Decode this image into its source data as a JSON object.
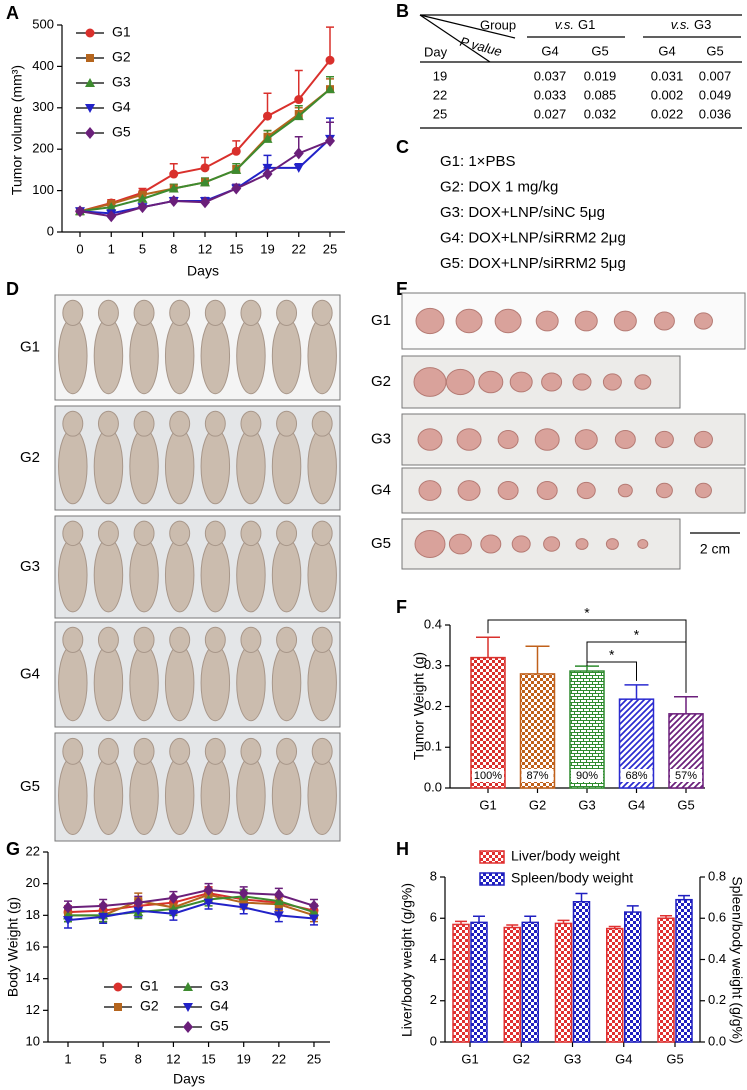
{
  "chart_data": [
    {
      "panel_label": "A",
      "type": "line",
      "xlabel": "Days",
      "ylabel": "Tumor volume (mm³)",
      "categories": [
        "0",
        "1",
        "5",
        "8",
        "12",
        "15",
        "19",
        "22",
        "25"
      ],
      "ylim": [
        0,
        500
      ],
      "yticks": [
        0,
        100,
        200,
        300,
        400,
        500
      ],
      "error_bars": "upper",
      "legend": "upper left",
      "series": [
        {
          "name": "G1",
          "color": "#d9302c",
          "marker": "circle",
          "values": [
            50,
            70,
            95,
            140,
            155,
            195,
            280,
            320,
            415
          ],
          "errors": [
            5,
            8,
            10,
            25,
            25,
            25,
            55,
            70,
            80
          ]
        },
        {
          "name": "G2",
          "color": "#b5651d",
          "marker": "square",
          "values": [
            50,
            68,
            90,
            105,
            120,
            150,
            230,
            285,
            345
          ],
          "errors": [
            4,
            5,
            8,
            10,
            10,
            10,
            15,
            15,
            25
          ]
        },
        {
          "name": "G3",
          "color": "#3d8b2f",
          "marker": "triangle-up",
          "values": [
            50,
            60,
            80,
            105,
            120,
            150,
            225,
            280,
            345
          ],
          "errors": [
            5,
            5,
            8,
            10,
            10,
            15,
            20,
            25,
            30
          ]
        },
        {
          "name": "G4",
          "color": "#2222c8",
          "marker": "triangle-down",
          "values": [
            50,
            45,
            60,
            75,
            75,
            105,
            155,
            155,
            225
          ],
          "errors": [
            5,
            5,
            5,
            8,
            8,
            10,
            30,
            10,
            50
          ]
        },
        {
          "name": "G5",
          "color": "#6a1f7a",
          "marker": "diamond",
          "values": [
            50,
            38,
            60,
            75,
            72,
            105,
            140,
            190,
            220
          ],
          "errors": [
            5,
            5,
            5,
            5,
            8,
            10,
            15,
            40,
            45
          ]
        }
      ]
    },
    {
      "panel_label": "F",
      "type": "bar",
      "ylabel": "Tumor Weight (g)",
      "categories": [
        "G1",
        "G2",
        "G3",
        "G4",
        "G5"
      ],
      "values": [
        0.32,
        0.28,
        0.287,
        0.218,
        0.182
      ],
      "errors": [
        0.05,
        0.068,
        0.012,
        0.035,
        0.042
      ],
      "colors": [
        "#d9302c",
        "#c0601a",
        "#2e8b2e",
        "#2b2bd0",
        "#6b1f7b"
      ],
      "patterns": [
        "checker",
        "checker",
        "brick",
        "diagonal",
        "diagonal"
      ],
      "bar_labels": [
        "100%",
        "87%",
        "90%",
        "68%",
        "57%"
      ],
      "ylim": [
        0,
        0.4
      ],
      "yticks": [
        {
          "value": 0,
          "label": "0.0"
        },
        0.1,
        0.2,
        0.3,
        0.4
      ],
      "significance": [
        {
          "groups": [
            "G1",
            "G5"
          ],
          "label": "*"
        },
        {
          "groups": [
            "G3",
            "G5"
          ],
          "label": "*"
        },
        {
          "groups": [
            "G3",
            "G4"
          ],
          "label": "*"
        }
      ]
    },
    {
      "panel_label": "G",
      "type": "line",
      "xlabel": "Days",
      "ylabel": "Body Weight (g)",
      "categories": [
        "1",
        "5",
        "8",
        "12",
        "15",
        "19",
        "22",
        "25"
      ],
      "ylim": [
        10,
        22
      ],
      "yticks": [
        10,
        12,
        14,
        16,
        18,
        20,
        22
      ],
      "error_bars": "both",
      "legend": "lower center",
      "series": [
        {
          "name": "G1",
          "color": "#d9302c",
          "marker": "circle",
          "values": [
            18.2,
            18.3,
            18.6,
            18.8,
            19.4,
            19.0,
            18.8,
            18.3
          ],
          "errors": [
            0.4,
            0.4,
            0.4,
            0.4,
            0.4,
            0.4,
            0.4,
            0.4
          ]
        },
        {
          "name": "G2",
          "color": "#b5651d",
          "marker": "square",
          "values": [
            18.0,
            18.0,
            18.9,
            18.5,
            19.3,
            18.8,
            18.7,
            18.0
          ],
          "errors": [
            0.4,
            0.4,
            0.5,
            0.4,
            0.4,
            0.4,
            0.4,
            0.4
          ]
        },
        {
          "name": "G3",
          "color": "#3d8b2f",
          "marker": "triangle-up",
          "values": [
            18.0,
            18.0,
            18.2,
            18.4,
            19.0,
            19.2,
            18.9,
            18.2
          ],
          "errors": [
            0.4,
            0.4,
            0.4,
            0.4,
            0.4,
            0.4,
            0.4,
            0.4
          ]
        },
        {
          "name": "G4",
          "color": "#2222c8",
          "marker": "triangle-down",
          "values": [
            17.7,
            17.9,
            18.3,
            18.1,
            18.8,
            18.5,
            18.0,
            17.8
          ],
          "errors": [
            0.5,
            0.4,
            0.4,
            0.4,
            0.4,
            0.4,
            0.4,
            0.4
          ]
        },
        {
          "name": "G5",
          "color": "#6a1f7a",
          "marker": "diamond",
          "values": [
            18.5,
            18.6,
            18.8,
            19.1,
            19.6,
            19.4,
            19.3,
            18.6
          ],
          "errors": [
            0.4,
            0.4,
            0.4,
            0.4,
            0.4,
            0.4,
            0.4,
            0.4
          ]
        }
      ]
    },
    {
      "panel_label": "H",
      "type": "grouped_bar",
      "ylabel": "Liver/body weight (g/g%)",
      "y2label": "Spleen/body weight (g/g%)",
      "categories": [
        "G1",
        "G2",
        "G3",
        "G4",
        "G5"
      ],
      "ylim": [
        0,
        8
      ],
      "yticks": [
        0,
        2,
        4,
        6,
        8
      ],
      "y2lim": [
        0,
        0.8
      ],
      "y2ticks": [
        {
          "value": 0,
          "label": "0.0"
        },
        0.2,
        0.4,
        0.6,
        0.8
      ],
      "series": [
        {
          "name": "Liver/body weight",
          "color": "#e03030",
          "pattern": "checker",
          "values": [
            5.7,
            5.55,
            5.75,
            5.5,
            6.0
          ],
          "errors": [
            0.15,
            0.12,
            0.15,
            0.1,
            0.12
          ]
        },
        {
          "name": "Spleen/body weight",
          "color": "#1f1fc0",
          "pattern": "checker",
          "axis": "y2",
          "values": [
            0.58,
            0.58,
            0.68,
            0.63,
            0.69
          ],
          "errors": [
            0.03,
            0.03,
            0.04,
            0.03,
            0.02
          ]
        }
      ]
    }
  ],
  "table": {
    "panel_label": "B",
    "header": {
      "group": "Group",
      "p_value": "P value",
      "day": "Day",
      "comparisons": [
        {
          "prefix": "v.s.",
          "group": "G1",
          "columns": [
            "G4",
            "G5"
          ]
        },
        {
          "prefix": "v.s.",
          "group": "G3",
          "columns": [
            "G4",
            "G5"
          ]
        }
      ]
    },
    "rows": [
      [
        19,
        0.037,
        0.019,
        0.031,
        0.007
      ],
      [
        22,
        0.033,
        0.085,
        0.002,
        0.049
      ],
      [
        25,
        0.027,
        0.032,
        0.022,
        0.036
      ]
    ]
  },
  "legend_text": {
    "panel_label": "C",
    "lines": [
      "G1: 1×PBS",
      "G2: DOX 1 mg/kg",
      "G3: DOX+LNP/siNC 5μg",
      "G4: DOX+LNP/siRRM2 2μg",
      "G5: DOX+LNP/siRRM2 5μg"
    ]
  },
  "photos": {
    "mice": {
      "panel_label": "D",
      "groups": [
        "G1",
        "G2",
        "G3",
        "G4",
        "G5"
      ]
    },
    "tumors": {
      "panel_label": "E",
      "groups": [
        "G1",
        "G2",
        "G3",
        "G4",
        "G5"
      ],
      "scale_bar": "2 cm"
    }
  }
}
